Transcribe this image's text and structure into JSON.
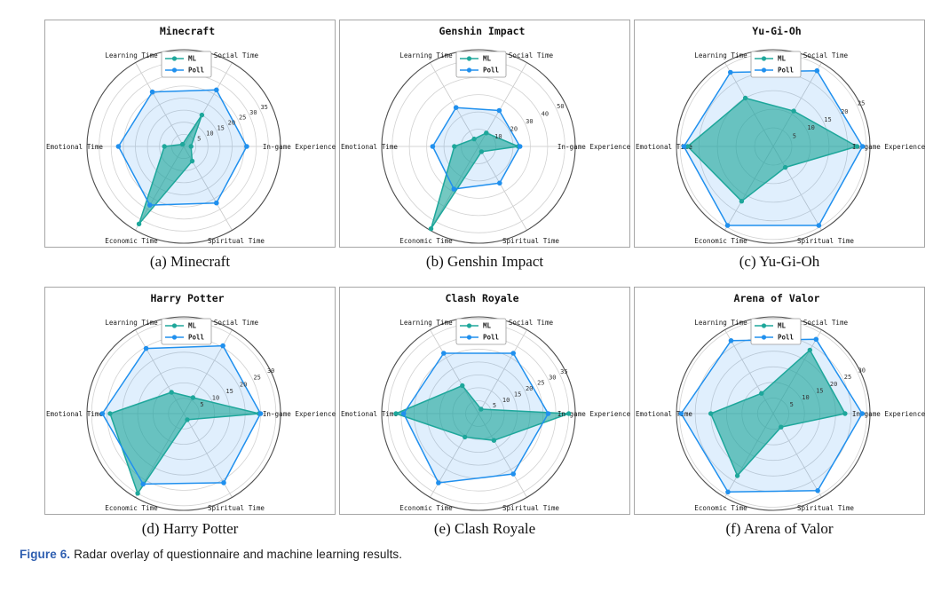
{
  "figure_caption": {
    "label": "Figure 6.",
    "text": "Radar overlay of questionnaire and machine learning results."
  },
  "legend": [
    "ML",
    "Poll"
  ],
  "axes": [
    {
      "label": "In-game Experience",
      "angle": 0
    },
    {
      "label": "Social Time",
      "angle": 60
    },
    {
      "label": "Learning Time",
      "angle": 120
    },
    {
      "label": "Emotional Time",
      "angle": 180
    },
    {
      "label": "Economic Time",
      "angle": 240
    },
    {
      "label": "Spiritual Time",
      "angle": 300
    }
  ],
  "style": {
    "ml_color": "#1ea79b",
    "poll_color": "#2090ee",
    "ml_fill_opacity": 0.62,
    "poll_fill_opacity": 0.14,
    "grid_color": "#d2d2d2",
    "spoke_color": "#c8c8c8",
    "ring_color": "#4f4f4f",
    "tick_text_color": "#333333",
    "label_text_color": "#1a1a1a",
    "legend_border_color": "#999999"
  },
  "chart_data": [
    {
      "id": "minecraft",
      "type": "radar",
      "title": "Minecraft",
      "caption": "(a) Minecraft",
      "categories": [
        "In-game Experience",
        "Social Time",
        "Learning Time",
        "Emotional Time",
        "Economic Time",
        "Spiritual Time"
      ],
      "ticks": [
        5,
        10,
        15,
        20,
        25,
        30,
        35
      ],
      "rmax": 40,
      "series": [
        {
          "name": "ML",
          "values": [
            3,
            15,
            1,
            8,
            37,
            7
          ]
        },
        {
          "name": "Poll",
          "values": [
            26,
            27,
            26,
            27,
            28,
            27
          ]
        }
      ]
    },
    {
      "id": "genshin-impact",
      "type": "radar",
      "title": "Genshin Impact",
      "caption": "(b) Genshin Impact",
      "categories": [
        "In-game Experience",
        "Social Time",
        "Learning Time",
        "Emotional Time",
        "Economic Time",
        "Spiritual Time"
      ],
      "ticks": [
        10,
        20,
        30,
        40,
        50
      ],
      "rmax": 56,
      "series": [
        {
          "name": "ML",
          "values": [
            23,
            9,
            5,
            14,
            55,
            3.5
          ]
        },
        {
          "name": "Poll",
          "values": [
            24,
            24,
            26,
            26.5,
            28.5,
            24.5
          ]
        }
      ]
    },
    {
      "id": "yu-gi-oh",
      "type": "radar",
      "title": "Yu-Gi-Oh",
      "caption": "(c) Yu-Gi-Oh",
      "categories": [
        "In-game Experience",
        "Social Time",
        "Learning Time",
        "Emotional Time",
        "Economic Time",
        "Spiritual Time"
      ],
      "ticks": [
        5,
        10,
        15,
        20,
        25
      ],
      "rmax": 26,
      "series": [
        {
          "name": "ML",
          "values": [
            22.5,
            11,
            15,
            23,
            17,
            6.5
          ]
        },
        {
          "name": "Poll",
          "values": [
            24,
            23.5,
            23,
            24,
            24.5,
            24.5
          ]
        }
      ]
    },
    {
      "id": "harry-potter",
      "type": "radar",
      "title": "Harry Potter",
      "caption": "(d) Harry Potter",
      "categories": [
        "In-game Experience",
        "Social Time",
        "Learning Time",
        "Emotional Time",
        "Economic Time",
        "Spiritual Time"
      ],
      "ticks": [
        5,
        10,
        15,
        20,
        25,
        30
      ],
      "rmax": 31.5,
      "series": [
        {
          "name": "ML",
          "values": [
            24.5,
            6,
            8,
            24,
            30,
            2.3
          ]
        },
        {
          "name": "Poll",
          "values": [
            25,
            25.5,
            24.5,
            26.5,
            26.5,
            26
          ]
        }
      ]
    },
    {
      "id": "clash-royale",
      "type": "radar",
      "title": "Clash Royale",
      "caption": "(e) Clash Royale",
      "categories": [
        "In-game Experience",
        "Social Time",
        "Learning Time",
        "Emotional Time",
        "Economic Time",
        "Spiritual Time"
      ],
      "ticks": [
        5,
        10,
        15,
        20,
        25,
        30,
        35
      ],
      "rmax": 37.5,
      "series": [
        {
          "name": "ML",
          "values": [
            35,
            2,
            12.5,
            32,
            10.5,
            12
          ]
        },
        {
          "name": "Poll",
          "values": [
            27,
            27,
            27,
            29,
            31,
            27
          ]
        }
      ]
    },
    {
      "id": "arena-of-valor",
      "type": "radar",
      "title": "Arena of Valor",
      "caption": "(f) Arena of Valor",
      "categories": [
        "In-game Experience",
        "Social Time",
        "Learning Time",
        "Emotional Time",
        "Economic Time",
        "Spiritual Time"
      ],
      "ticks": [
        5,
        10,
        15,
        20,
        25,
        30
      ],
      "rmax": 31,
      "series": [
        {
          "name": "ML",
          "values": [
            23,
            23.5,
            7.5,
            20,
            23,
            5
          ]
        },
        {
          "name": "Poll",
          "values": [
            28.5,
            27.5,
            27,
            29.5,
            29,
            28.5
          ]
        }
      ]
    }
  ]
}
